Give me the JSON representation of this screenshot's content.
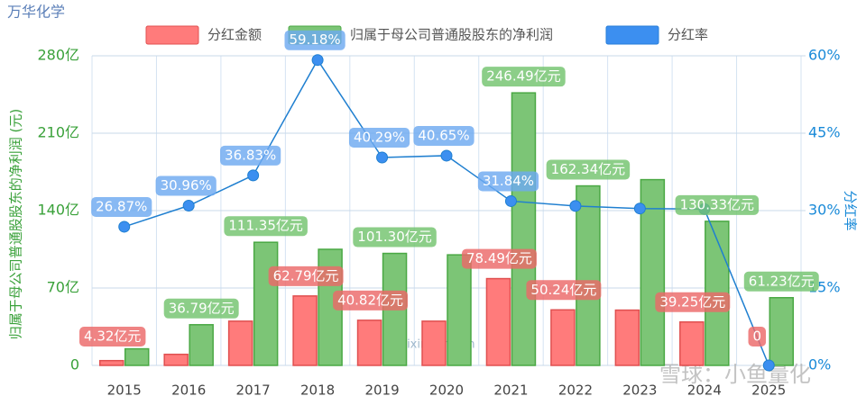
{
  "chart_data": {
    "type": "bar-line",
    "title": "万华化学",
    "categories": [
      "2015",
      "2016",
      "2017",
      "2018",
      "2019",
      "2020",
      "2021",
      "2022",
      "2023",
      "2024",
      "2025"
    ],
    "series": [
      {
        "name": "分红金额",
        "color": "#ff7b7b",
        "values": [
          4.32,
          10,
          40,
          62.79,
          40.82,
          40,
          78.49,
          50.24,
          50,
          39.25,
          0
        ],
        "value_labels": [
          "4.32亿元",
          null,
          null,
          "62.79亿元",
          "40.82亿元",
          null,
          "78.49亿元",
          "50.24亿元",
          null,
          "39.25亿元",
          "0"
        ]
      },
      {
        "name": "归属于母公司普通股股东的净利润",
        "color": "#7cc576",
        "values": [
          15,
          36.79,
          111.35,
          105,
          101.3,
          100,
          246.49,
          162.34,
          168,
          130.33,
          61.23
        ],
        "value_labels": [
          null,
          "36.79亿元",
          "111.35亿元",
          null,
          "101.30亿元",
          null,
          "246.49亿元",
          "162.34亿元",
          null,
          "130.33亿元",
          "61.23亿元"
        ]
      },
      {
        "name": "分红率",
        "color": "#3c8ff0",
        "axis": "y2",
        "values": [
          26.87,
          30.96,
          36.83,
          59.18,
          40.29,
          40.65,
          31.84,
          30.9,
          30.4,
          30.3,
          0
        ],
        "value_labels": [
          "26.87%",
          "30.96%",
          "36.83%",
          "59.18%",
          "40.29%",
          "40.65%",
          "31.84%",
          null,
          null,
          null,
          null
        ]
      }
    ],
    "ylabel": "归属于母公司普通股股东的净利润 (元)",
    "y2label": "分红率",
    "ylim": [
      0,
      280
    ],
    "yticks": [
      0,
      {
        "value": 70,
        "label": "70亿"
      },
      {
        "value": 140,
        "label": "140亿"
      },
      {
        "value": 210,
        "label": "210亿"
      },
      {
        "value": 280,
        "label": "280亿"
      }
    ],
    "y2lim": [
      0,
      60
    ],
    "y2ticks": [
      {
        "value": 0,
        "label": "0%"
      },
      {
        "value": 15,
        "label": "15%"
      },
      {
        "value": 30,
        "label": "30%"
      },
      {
        "value": 45,
        "label": "45%"
      },
      {
        "value": 60,
        "label": "60%"
      }
    ],
    "grid": true,
    "legend": "top",
    "watermarks": [
      "lixinger.com",
      "雪球：小鱼量化"
    ]
  }
}
